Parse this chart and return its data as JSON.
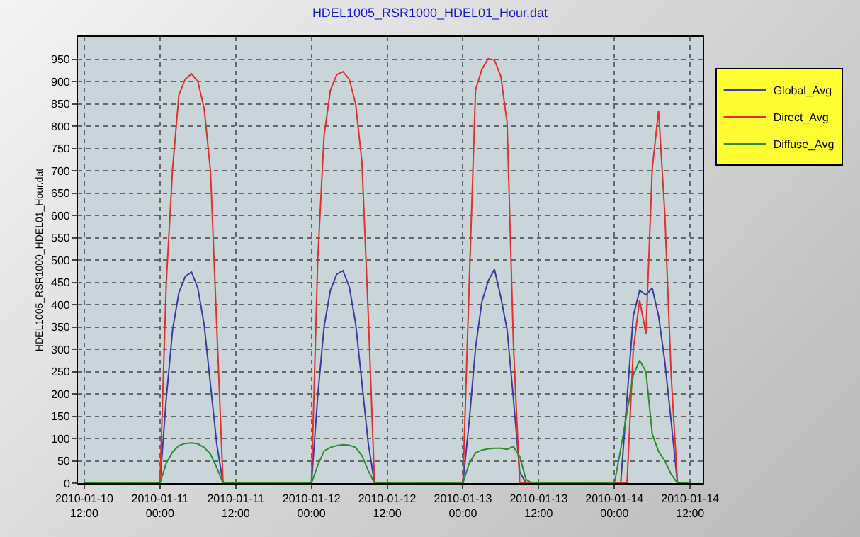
{
  "chart_data": {
    "type": "line",
    "title": "HDEL1005_RSR1000_HDEL01_Hour.dat",
    "ylabel": "HDEL1005_RSR1000_HDEL01_Hour.dat",
    "x": [
      "2010-01-10T12:00",
      "2010-01-11T00:00",
      "2010-01-11T01:00",
      "2010-01-11T02:00",
      "2010-01-11T03:00",
      "2010-01-11T04:00",
      "2010-01-11T05:00",
      "2010-01-11T06:00",
      "2010-01-11T07:00",
      "2010-01-11T08:00",
      "2010-01-11T09:00",
      "2010-01-11T10:00",
      "2010-01-11T11:00",
      "2010-01-12T00:00",
      "2010-01-12T01:00",
      "2010-01-12T02:00",
      "2010-01-12T03:00",
      "2010-01-12T04:00",
      "2010-01-12T05:00",
      "2010-01-12T06:00",
      "2010-01-12T07:00",
      "2010-01-12T08:00",
      "2010-01-12T09:00",
      "2010-01-12T10:00",
      "2010-01-12T11:00",
      "2010-01-13T00:00",
      "2010-01-13T01:00",
      "2010-01-13T02:00",
      "2010-01-13T03:00",
      "2010-01-13T04:00",
      "2010-01-13T05:00",
      "2010-01-13T06:00",
      "2010-01-13T07:00",
      "2010-01-13T08:00",
      "2010-01-13T09:00",
      "2010-01-13T10:00",
      "2010-01-13T11:00",
      "2010-01-14T00:00",
      "2010-01-14T01:00",
      "2010-01-14T02:00",
      "2010-01-14T03:00",
      "2010-01-14T04:00",
      "2010-01-14T05:00",
      "2010-01-14T06:00",
      "2010-01-14T07:00",
      "2010-01-14T08:00",
      "2010-01-14T09:00",
      "2010-01-14T10:00",
      "2010-01-14T11:00",
      "2010-01-14T12:00"
    ],
    "series": [
      {
        "name": "Global_Avg",
        "color": "#3c3ca0",
        "values": [
          0,
          0,
          190,
          344,
          427,
          463,
          473,
          437,
          355,
          221,
          87,
          0,
          0,
          0,
          195,
          350,
          432,
          468,
          476,
          440,
          358,
          225,
          90,
          0,
          0,
          0,
          139,
          303,
          406,
          453,
          479,
          417,
          344,
          190,
          25,
          0,
          0,
          0,
          0,
          190,
          375,
          432,
          422,
          437,
          375,
          272,
          138,
          0,
          0,
          0
        ]
      },
      {
        "name": "Direct_Avg",
        "color": "#e03030",
        "values": [
          0,
          0,
          450,
          705,
          870,
          905,
          917,
          900,
          840,
          700,
          350,
          0,
          0,
          0,
          500,
          778,
          880,
          915,
          922,
          905,
          850,
          720,
          380,
          0,
          0,
          0,
          448,
          881,
          927,
          951,
          948,
          912,
          808,
          313,
          0,
          0,
          0,
          0,
          0,
          0,
          300,
          410,
          335,
          705,
          835,
          602,
          241,
          0,
          0,
          0
        ]
      },
      {
        "name": "Diffuse_Avg",
        "color": "#2e8b2e",
        "values": [
          0,
          0,
          45,
          70,
          84,
          89,
          90,
          88,
          80,
          65,
          35,
          0,
          0,
          0,
          40,
          72,
          80,
          84,
          86,
          85,
          80,
          62,
          28,
          0,
          0,
          0,
          45,
          68,
          74,
          77,
          78,
          78,
          76,
          82,
          60,
          8,
          0,
          0,
          76,
          159,
          242,
          275,
          250,
          110,
          71,
          50,
          20,
          0,
          0,
          0
        ]
      }
    ],
    "xlim": [
      "2010-01-10T11:00",
      "2010-01-14T14:00"
    ],
    "xticks": [
      {
        "value": "2010-01-10T12:00",
        "label": "2010-01-10\n12:00"
      },
      {
        "value": "2010-01-11T00:00",
        "label": "2010-01-11\n00:00"
      },
      {
        "value": "2010-01-11T12:00",
        "label": "2010-01-11\n12:00"
      },
      {
        "value": "2010-01-12T00:00",
        "label": "2010-01-12\n00:00"
      },
      {
        "value": "2010-01-12T12:00",
        "label": "2010-01-12\n12:00"
      },
      {
        "value": "2010-01-13T00:00",
        "label": "2010-01-13\n00:00"
      },
      {
        "value": "2010-01-13T12:00",
        "label": "2010-01-13\n12:00"
      },
      {
        "value": "2010-01-14T00:00",
        "label": "2010-01-14\n00:00"
      },
      {
        "value": "2010-01-14T12:00",
        "label": "2010-01-14\n12:00"
      }
    ],
    "ylim": [
      0,
      1000
    ],
    "yticks": [
      0,
      50,
      100,
      150,
      200,
      250,
      300,
      350,
      400,
      450,
      500,
      550,
      600,
      650,
      700,
      750,
      800,
      850,
      900,
      950
    ],
    "grid": true,
    "legend": "top right",
    "marker": "none",
    "line_style": "solid"
  }
}
